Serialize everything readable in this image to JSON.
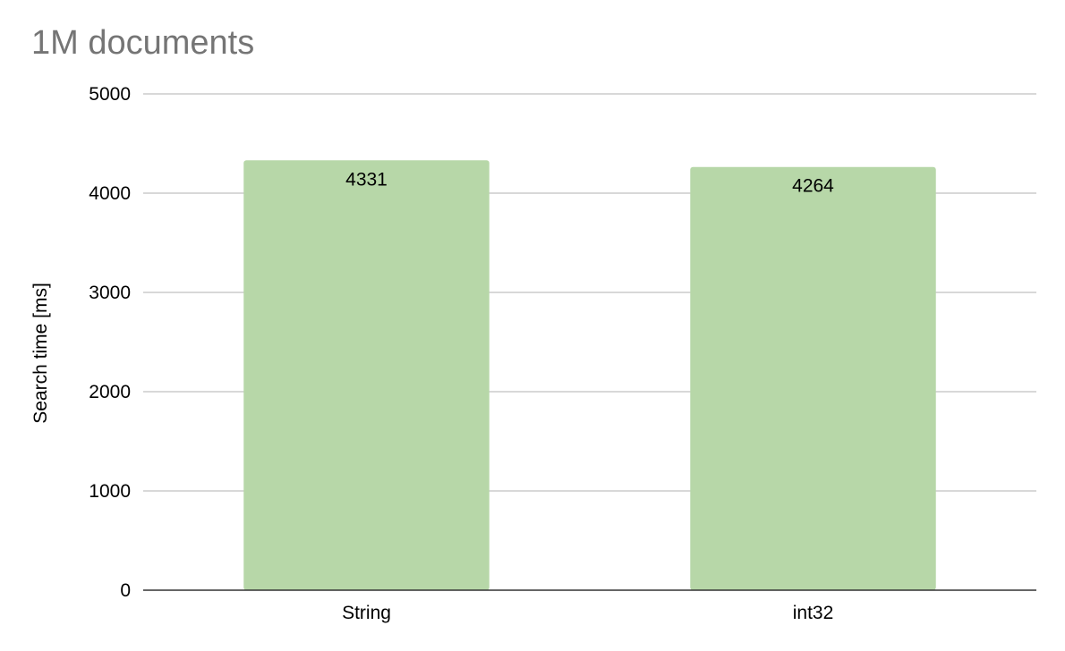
{
  "chart_data": {
    "type": "bar",
    "title": "1M documents",
    "xlabel": "",
    "ylabel": "Search time [ms]",
    "categories": [
      "String",
      "int32"
    ],
    "values": [
      4331,
      4264
    ],
    "data_labels": [
      "4331",
      "4264"
    ],
    "ylim": [
      0,
      5000
    ],
    "yticks": [
      0,
      1000,
      2000,
      3000,
      4000,
      5000
    ],
    "grid": true,
    "legend": "none",
    "bar_color": "#b7d7a8",
    "title_color": "#757575"
  }
}
